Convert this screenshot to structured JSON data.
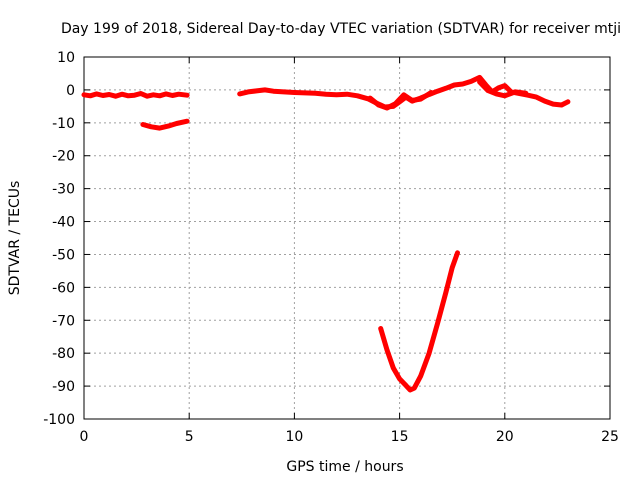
{
  "chart_data": {
    "type": "line",
    "title": "Day 199 of 2018, Sidereal Day-to-day VTEC variation (SDTVAR) for receiver mtji",
    "xlabel": "GPS time / hours",
    "ylabel": "SDTVAR / TECUs",
    "xlim": [
      0,
      25
    ],
    "ylim": [
      -100,
      10
    ],
    "xticks": [
      0,
      5,
      10,
      15,
      20,
      25
    ],
    "yticks": [
      10,
      0,
      -10,
      -20,
      -30,
      -40,
      -50,
      -60,
      -70,
      -80,
      -90,
      -100
    ],
    "grid": true,
    "color": "#ff0000",
    "series": [
      {
        "segments": [
          [
            [
              0.0,
              -1.5
            ],
            [
              0.3,
              -1.8
            ],
            [
              0.6,
              -1.2
            ],
            [
              0.9,
              -1.7
            ],
            [
              1.2,
              -1.4
            ],
            [
              1.5,
              -1.9
            ],
            [
              1.8,
              -1.3
            ],
            [
              2.1,
              -1.8
            ],
            [
              2.4,
              -1.6
            ],
            [
              2.7,
              -1.1
            ],
            [
              3.0,
              -1.9
            ],
            [
              3.3,
              -1.5
            ],
            [
              3.6,
              -1.8
            ],
            [
              3.9,
              -1.2
            ],
            [
              4.2,
              -1.7
            ],
            [
              4.5,
              -1.3
            ],
            [
              4.9,
              -1.6
            ]
          ],
          [
            [
              2.8,
              -10.5
            ],
            [
              3.2,
              -11.2
            ],
            [
              3.6,
              -11.6
            ],
            [
              4.0,
              -11.0
            ],
            [
              4.4,
              -10.2
            ],
            [
              4.9,
              -9.5
            ]
          ],
          [
            [
              7.4,
              -1.2
            ],
            [
              7.8,
              -0.6
            ],
            [
              8.2,
              -0.3
            ],
            [
              8.6,
              0.0
            ],
            [
              9.0,
              -0.4
            ],
            [
              9.5,
              -0.6
            ],
            [
              10.0,
              -0.8
            ],
            [
              10.5,
              -0.9
            ],
            [
              11.0,
              -1.0
            ],
            [
              11.5,
              -1.3
            ],
            [
              12.0,
              -1.5
            ],
            [
              12.5,
              -1.3
            ],
            [
              13.0,
              -1.8
            ],
            [
              13.5,
              -2.7
            ],
            [
              13.9,
              -4.0
            ],
            [
              14.3,
              -5.2
            ],
            [
              14.7,
              -5.0
            ],
            [
              15.0,
              -3.6
            ],
            [
              15.3,
              -2.2
            ],
            [
              15.6,
              -3.4
            ],
            [
              16.0,
              -2.5
            ],
            [
              16.4,
              -1.4
            ],
            [
              16.8,
              -0.4
            ],
            [
              17.2,
              0.5
            ],
            [
              17.6,
              1.5
            ],
            [
              18.0,
              1.8
            ],
            [
              18.4,
              2.6
            ],
            [
              18.8,
              3.8
            ],
            [
              19.1,
              1.5
            ],
            [
              19.4,
              -0.6
            ],
            [
              19.7,
              0.6
            ],
            [
              20.0,
              1.3
            ],
            [
              20.3,
              -0.6
            ],
            [
              20.7,
              -1.1
            ],
            [
              21.1,
              -1.6
            ],
            [
              21.5,
              -2.2
            ],
            [
              21.9,
              -3.4
            ],
            [
              22.3,
              -4.3
            ],
            [
              22.7,
              -4.6
            ],
            [
              23.0,
              -3.6
            ]
          ],
          [
            [
              13.6,
              -2.5
            ],
            [
              14.0,
              -4.6
            ],
            [
              14.4,
              -5.5
            ],
            [
              14.8,
              -4.2
            ],
            [
              15.2,
              -1.5
            ],
            [
              15.6,
              -3.2
            ],
            [
              16.0,
              -2.8
            ],
            [
              16.5,
              -0.8
            ]
          ],
          [
            [
              18.8,
              2.4
            ],
            [
              19.2,
              -0.2
            ],
            [
              19.6,
              -1.2
            ],
            [
              20.0,
              -1.8
            ],
            [
              20.5,
              -0.6
            ],
            [
              21.0,
              -1.0
            ]
          ],
          [
            [
              14.1,
              -72.5
            ],
            [
              14.4,
              -79.0
            ],
            [
              14.7,
              -84.5
            ],
            [
              15.0,
              -87.8
            ],
            [
              15.3,
              -89.8
            ],
            [
              15.5,
              -91.2
            ],
            [
              15.7,
              -90.6
            ],
            [
              16.0,
              -87.0
            ],
            [
              16.4,
              -80.0
            ],
            [
              16.8,
              -71.0
            ],
            [
              17.2,
              -61.5
            ],
            [
              17.5,
              -54.0
            ],
            [
              17.75,
              -49.5
            ]
          ]
        ]
      }
    ]
  }
}
